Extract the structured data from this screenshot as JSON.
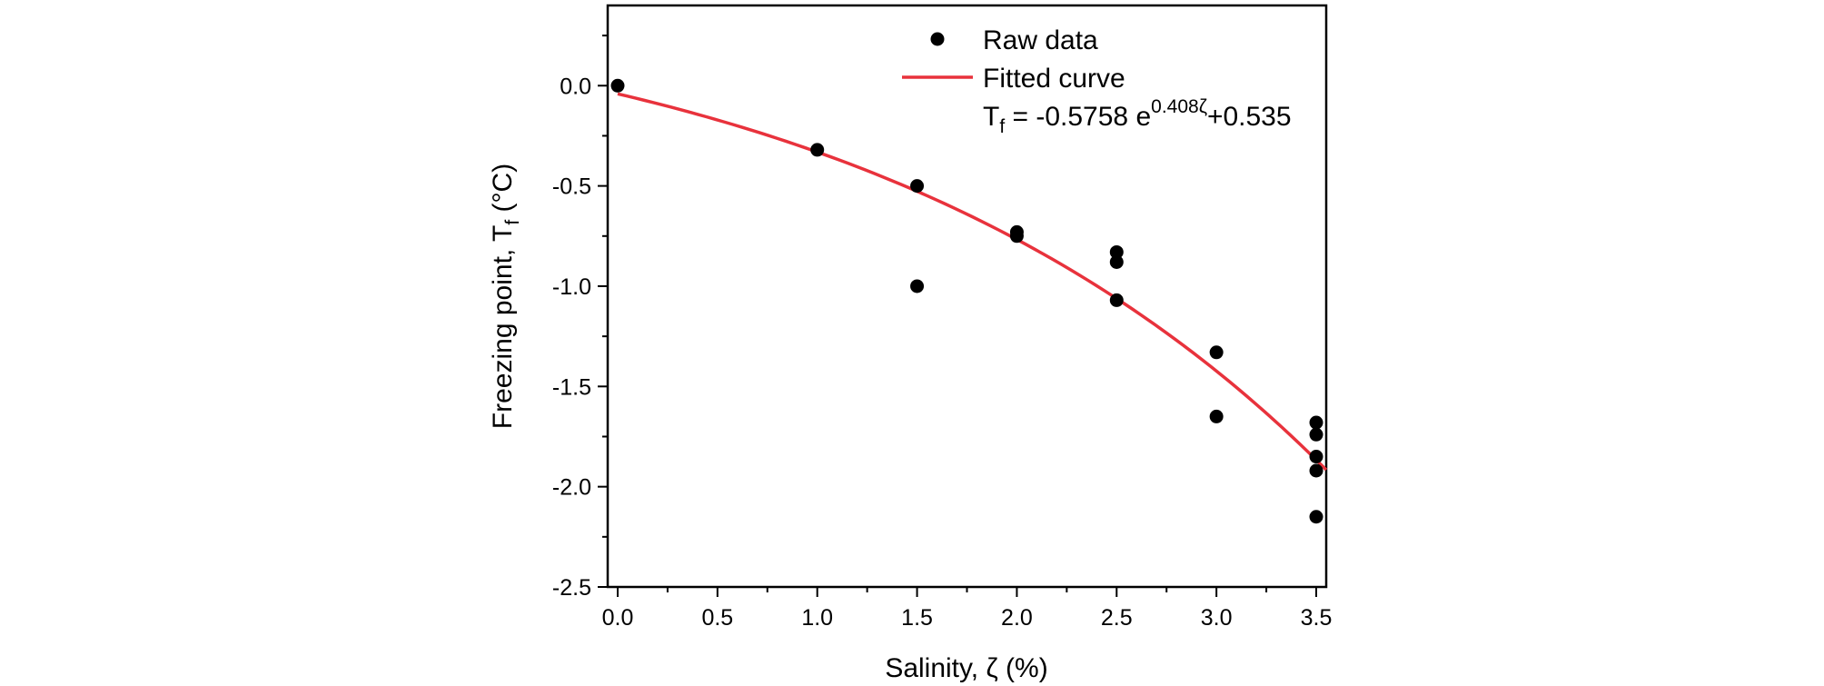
{
  "chart_data": {
    "type": "scatter",
    "title": "",
    "xlabel": "Salinity, ζ (%)",
    "ylabel": "Freezing point, T_f (°C)",
    "xlabel_parts": {
      "text": "Salinity, ζ (%)"
    },
    "ylabel_parts": {
      "main": "Freezing point, T",
      "sub": "f",
      "unit": " (°C)"
    },
    "xlim": [
      -0.05,
      3.55
    ],
    "ylim": [
      -2.5,
      0.4
    ],
    "xticks": [
      0.0,
      0.5,
      1.0,
      1.5,
      2.0,
      2.5,
      3.0,
      3.5
    ],
    "xtick_labels": [
      "0.0",
      "0.5",
      "1.0",
      "1.5",
      "2.0",
      "2.5",
      "3.0",
      "3.5"
    ],
    "yticks": [
      0.0,
      -0.5,
      -1.0,
      -1.5,
      -2.0,
      -2.5
    ],
    "ytick_labels": [
      "0.0",
      "-0.5",
      "-1.0",
      "-1.5",
      "-2.0",
      "-2.5"
    ],
    "grid": false,
    "legend_position": "top-right",
    "colors": {
      "raw": "#000000",
      "fit": "#e8323c",
      "axis": "#000000"
    },
    "series": [
      {
        "name": "Raw data",
        "kind": "scatter",
        "x": [
          0.0,
          1.0,
          1.5,
          1.5,
          2.0,
          2.0,
          2.5,
          2.5,
          2.5,
          3.0,
          3.0,
          3.5,
          3.5,
          3.5,
          3.5,
          3.5
        ],
        "y": [
          0.0,
          -0.32,
          -0.5,
          -1.0,
          -0.73,
          -0.75,
          -0.83,
          -0.88,
          -1.07,
          -1.33,
          -1.65,
          -1.68,
          -1.74,
          -1.85,
          -1.92,
          -2.15
        ]
      },
      {
        "name": "Fitted curve",
        "kind": "line",
        "equation": {
          "a": -0.5758,
          "b": 0.408,
          "c": 0.535
        },
        "x_range": [
          0.0,
          3.55
        ]
      }
    ],
    "legend": {
      "raw_label": "Raw data",
      "fit_label": "Fitted curve",
      "eq_lhs": "T",
      "eq_lhs_sub": "f",
      "eq_mid": " = -0.5758 e",
      "eq_exp": "0.408ζ",
      "eq_rhs": "+0.535"
    }
  }
}
